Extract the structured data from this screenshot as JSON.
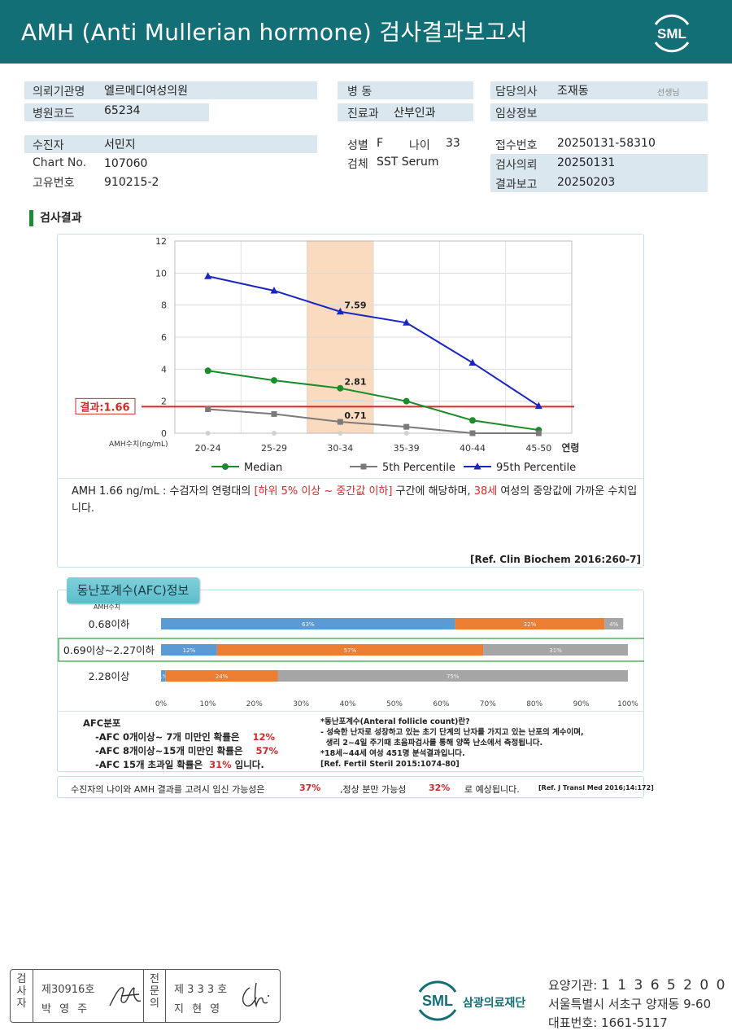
{
  "header": {
    "title": "AMH (Anti Mullerian hormone) 검사결과보고서",
    "logo_text": "SML"
  },
  "info": {
    "institution_label": "의뢰기관명",
    "institution_value": "엘르메디여성의원",
    "hospital_code_label": "병원코드",
    "hospital_code_value": "65234",
    "ward_label": "병 동",
    "dept_label": "진료과",
    "dept_value": "산부인과",
    "doctor_label": "담당의사",
    "doctor_value": "조재동",
    "doctor_suffix": "선생님",
    "clinical_label": "임상정보",
    "patient_label": "수진자",
    "patient_value": "서민지",
    "chart_label": "Chart No.",
    "chart_value": "107060",
    "unique_label": "고유번호",
    "unique_value": "910215-2",
    "sex_label": "성별",
    "sex_value": "F",
    "age_label": "나이",
    "age_value": "33",
    "specimen_label": "검체",
    "specimen_value": "SST Serum",
    "receipt_label": "접수번호",
    "receipt_value": "20250131-58310",
    "request_label": "검사의뢰",
    "request_value": "20250131",
    "report_label": "결과보고",
    "report_value": "20250203"
  },
  "section_title": "검사결과",
  "chart_data": {
    "type": "line",
    "categories": [
      "20-24",
      "25-29",
      "30-34",
      "35-39",
      "40-44",
      "45-50"
    ],
    "xlabel": "연령",
    "ylabel": "AMH수치(ng/mL)",
    "ylim": [
      0,
      12
    ],
    "yticks": [
      0,
      2,
      4,
      6,
      8,
      10,
      12
    ],
    "series": [
      {
        "name": "Median",
        "color": "#1a8c2a",
        "marker": "circle",
        "values": [
          3.9,
          3.3,
          2.81,
          2.0,
          0.8,
          0.2
        ]
      },
      {
        "name": "5th Percentile",
        "color": "#7a7a7a",
        "marker": "square",
        "values": [
          1.5,
          1.2,
          0.71,
          0.4,
          0.0,
          0.0
        ]
      },
      {
        "name": "95th Percentile",
        "color": "#1a26c4",
        "marker": "triangle",
        "values": [
          9.8,
          8.9,
          7.59,
          6.9,
          4.4,
          1.7
        ]
      }
    ],
    "data_labels": [
      {
        "category": "30-34",
        "value": 7.59,
        "text": "7.59"
      },
      {
        "category": "30-34",
        "value": 2.81,
        "text": "2.81"
      },
      {
        "category": "30-34",
        "value": 0.71,
        "text": "0.71"
      }
    ],
    "highlight_category": "30-34",
    "result_line": {
      "value": 1.66,
      "label": "결과:1.66",
      "color": "#d12a2a"
    },
    "grid": true,
    "legend": "bottom"
  },
  "interpretation": {
    "part1": "AMH  1.66 ng/mL : 수검자의 연령대의 ",
    "range": "[하위 5% 이상 ~ 중간값 이하]",
    "part2": "  구간에 해당하며, ",
    "age": "38세",
    "part3": " 여성의 중앙값에 가까운 수치입니다."
  },
  "ref1": "[Ref. Clin Biochem 2016:260-7]",
  "afc": {
    "tab_label": "동난포계수(AFC)정보",
    "amh_label": "AMH수치",
    "rows": [
      {
        "label": "0.68이하",
        "segments": [
          63,
          32,
          4
        ],
        "texts": [
          "63%",
          "32%",
          "4%"
        ],
        "highlight": false
      },
      {
        "label": "0.69이상~2.27이하",
        "segments": [
          12,
          57,
          31
        ],
        "texts": [
          "12%",
          "57%",
          "31%"
        ],
        "highlight": true
      },
      {
        "label": "2.28이상",
        "segments": [
          1,
          24,
          75
        ],
        "texts": [
          "1%",
          "24%",
          "75%"
        ],
        "highlight": false
      }
    ],
    "colors": [
      "#5b9bd5",
      "#ed7d31",
      "#a5a5a5"
    ],
    "axis_ticks": [
      "0%",
      "10%",
      "20%",
      "30%",
      "40%",
      "50%",
      "60%",
      "70%",
      "80%",
      "90%",
      "100%"
    ],
    "dist_title": "AFC분포",
    "dist1": "-AFC  0개이상~ 7개 미만인 확률은",
    "dist1_pct": "12%",
    "dist2": "-AFC  8개이상~15개 미만인 확률은",
    "dist2_pct": "57%",
    "dist3": "-AFC  15개 초과일 확률은",
    "dist3_pct": "31%",
    "dist3_suffix": "입니다.",
    "note1": "*동난포계수(Anteral follicle count)란?",
    "note2": "- 성숙한 난자로 성장하고 있는 초기 단계의 난자를 가지고 있는 난포의 계수이며,",
    "note3": "  생리 2~4일 주기때 초음파검사를 통해 양쪽 난소에서 측정됩니다.",
    "note4": "*18세~44세 여성 451명 분석결과입니다.",
    "note5": "[Ref. Fertil Steril 2015:1074-80]"
  },
  "pregnancy": {
    "text1": "수진자의  나이와 AMH 결과를 고려시 임신 가능성은",
    "pct1": "37%",
    "text2": ",정상 분만 가능성",
    "pct2": "32%",
    "text3": "로 예상됩니다.",
    "ref": "[Ref. J Transl Med 2016;14:172]"
  },
  "signature": {
    "col1_label": "검\n사\n자",
    "col1_no": "제30916호",
    "col1_name": "박 영 주",
    "col2_label": "전\n문\n의",
    "col2_no": "제 3 3 3 호",
    "col2_name": "지 현 영"
  },
  "footer": {
    "logo_text": "SML",
    "org_name": "삼광의료재단",
    "code_label": "요양기관:",
    "code_value": "1 1 3 6 5 2 0 0",
    "address": "서울특별시 서초구 양재동 9-60",
    "phone_label": "대표번호:",
    "phone_value": "1661-5117"
  }
}
